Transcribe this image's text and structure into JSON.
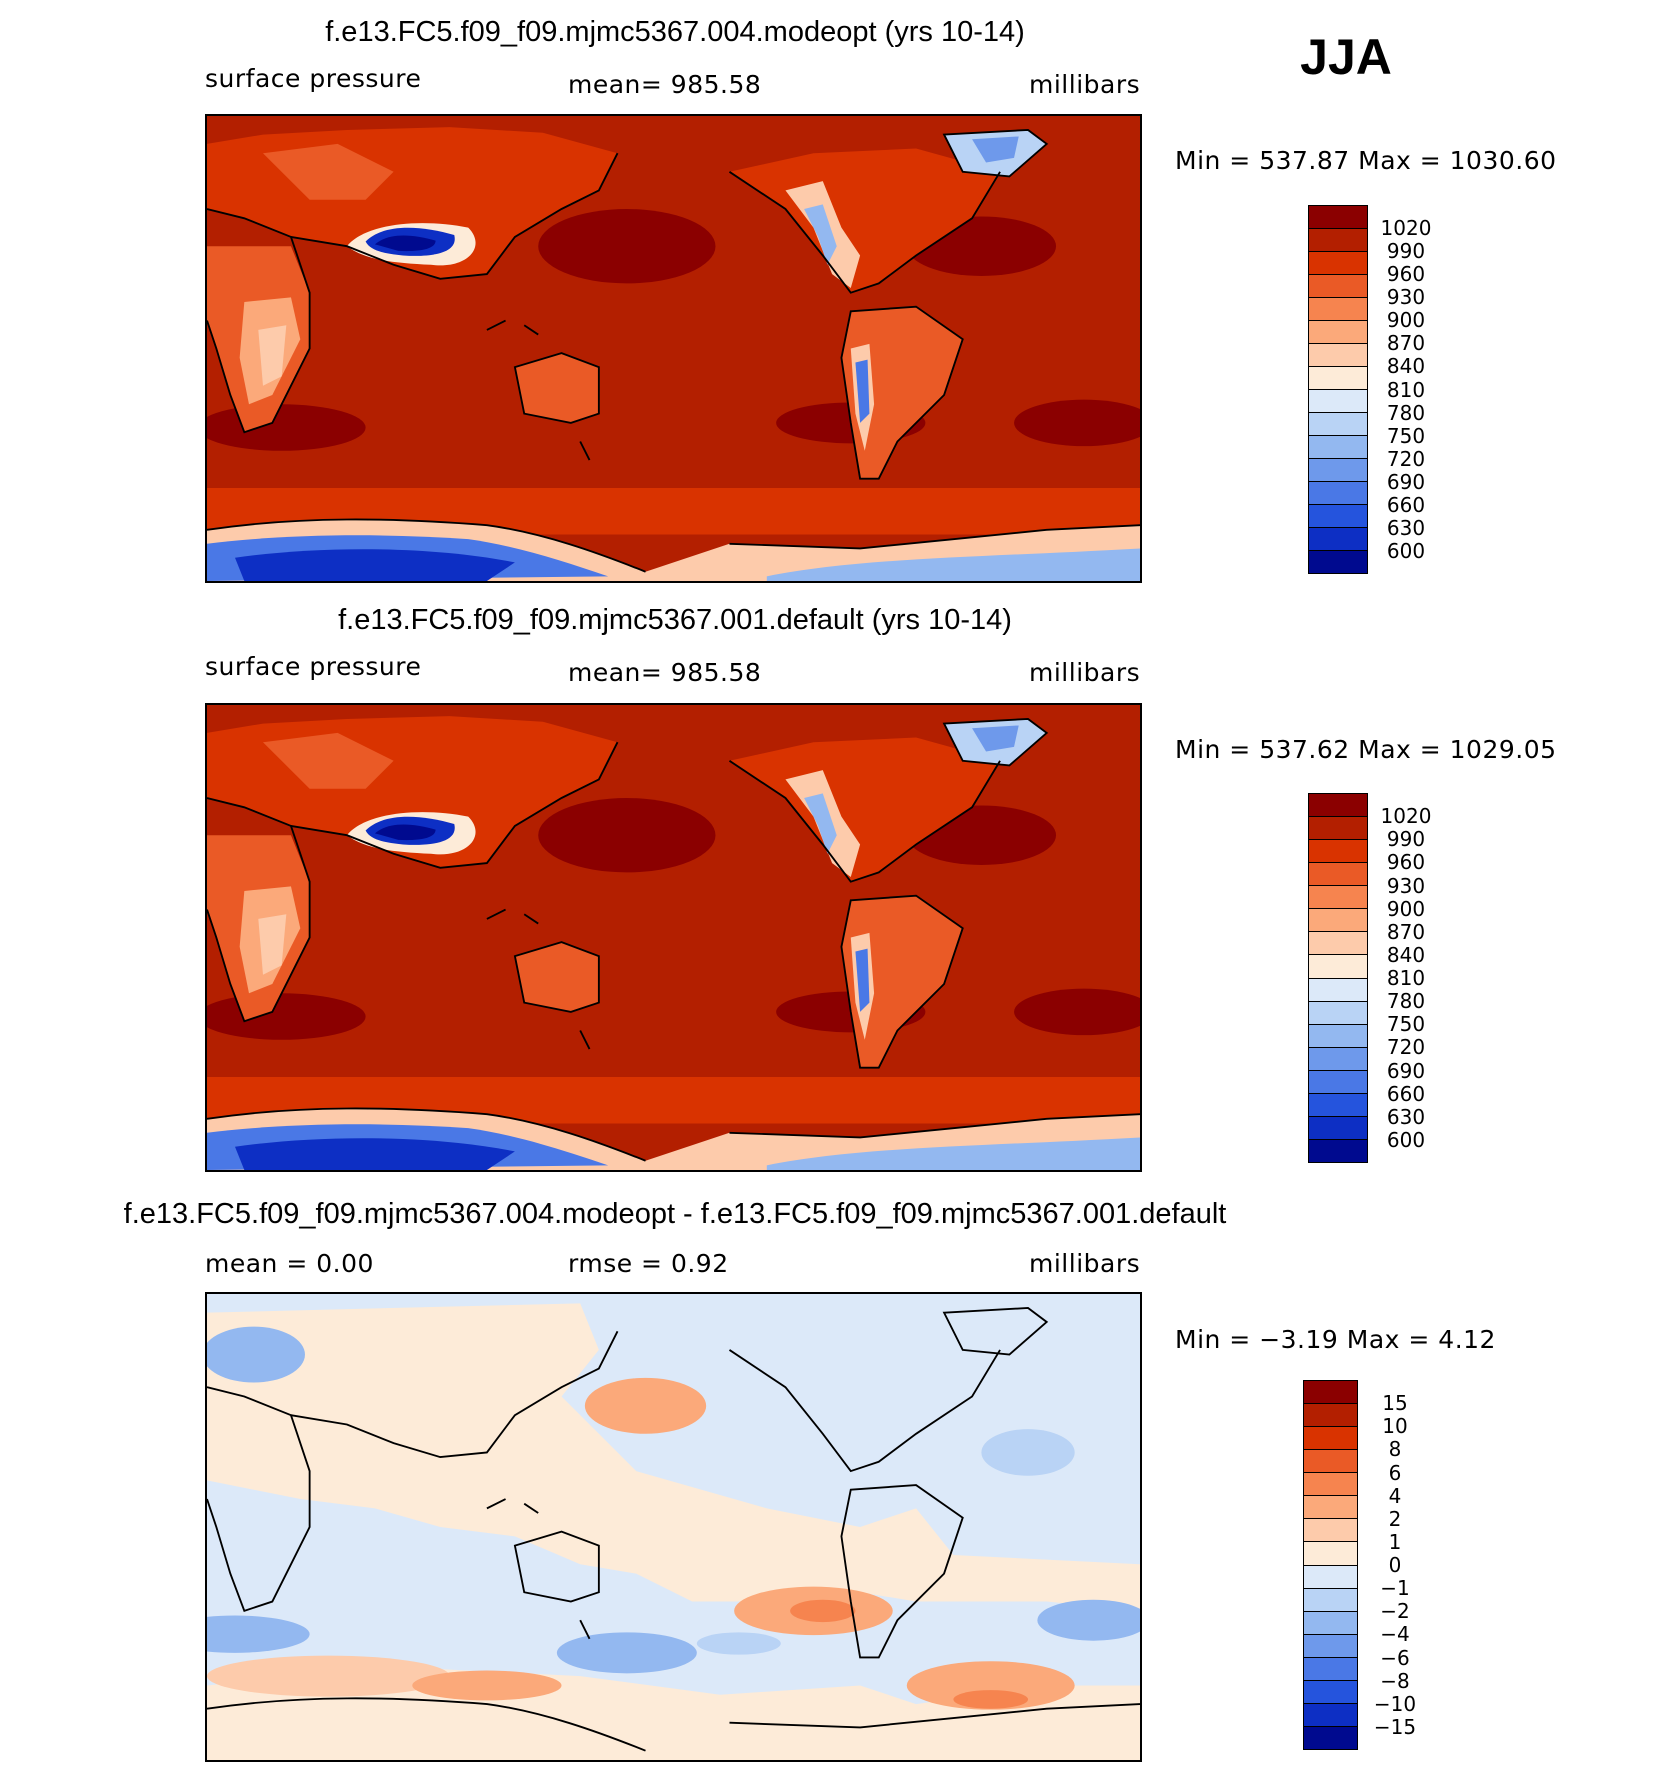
{
  "season": "JJA",
  "panels": [
    {
      "title": "f.e13.FC5.f09_f09.mjmc5367.004.modeopt (yrs 10-14)",
      "left_label": "surface pressure",
      "center_label": "mean=  985.58",
      "units": "millibars",
      "minmax": "Min  =  537.87  Max  =  1030.60",
      "field": "absolute"
    },
    {
      "title": "f.e13.FC5.f09_f09.mjmc5367.001.default (yrs 10-14)",
      "left_label": "surface pressure",
      "center_label": "mean=  985.58",
      "units": "millibars",
      "minmax": "Min  =  537.62  Max  =  1029.05",
      "field": "absolute"
    },
    {
      "title": "f.e13.FC5.f09_f09.mjmc5367.004.modeopt - f.e13.FC5.f09_f09.mjmc5367.001.default",
      "left_label": "mean  =     0.00",
      "center_label": "rmse  =     0.92",
      "units": "millibars",
      "minmax": "Min  =    −3.19  Max  =     4.12",
      "field": "difference"
    }
  ],
  "colorbars": {
    "absolute": {
      "colors": [
        "#8b0000",
        "#b31f00",
        "#d93300",
        "#ea5a26",
        "#f6844f",
        "#fba97a",
        "#fdcbab",
        "#fdebd8",
        "#dce9f9",
        "#b9d3f5",
        "#93b8f0",
        "#6e99eb",
        "#4a78e6",
        "#2554dd",
        "#0d2fc4",
        "#000a8f"
      ],
      "labels": [
        "1020",
        "990",
        "960",
        "930",
        "900",
        "870",
        "840",
        "810",
        "780",
        "750",
        "720",
        "690",
        "660",
        "630",
        "600"
      ]
    },
    "difference": {
      "colors": [
        "#8b0000",
        "#b31f00",
        "#d93300",
        "#ea5a26",
        "#f6844f",
        "#fba97a",
        "#fdcbab",
        "#fdebd8",
        "#dce9f9",
        "#b9d3f5",
        "#93b8f0",
        "#6e99eb",
        "#4a78e6",
        "#2554dd",
        "#0d2fc4",
        "#000a8f"
      ],
      "labels": [
        "15",
        "10",
        "8",
        "6",
        "4",
        "2",
        "1",
        "0",
        "−1",
        "−2",
        "−4",
        "−6",
        "−8",
        "−10",
        "−15"
      ]
    }
  }
}
